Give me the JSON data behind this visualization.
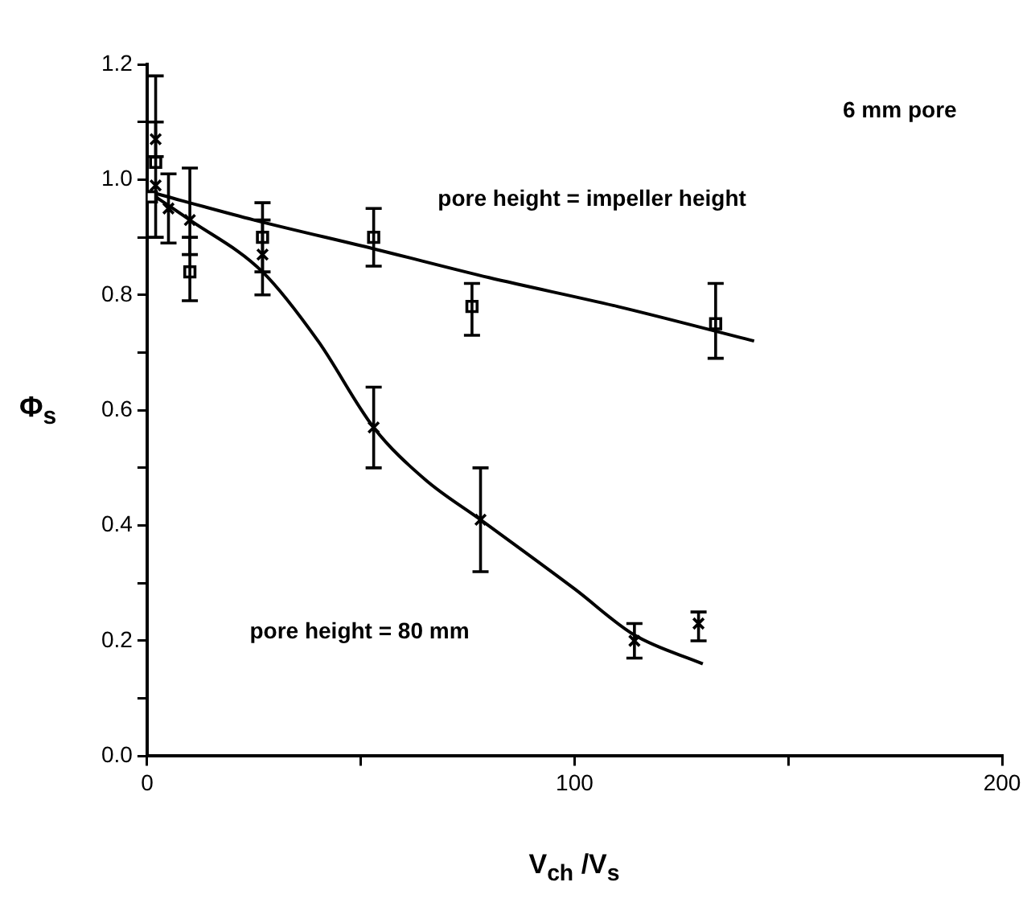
{
  "chart_data": {
    "type": "scatter",
    "xlabel": "V$_{ch}$ /V$_{s}$",
    "ylabel": "Φ$_{s}$",
    "annotations": [
      "6 mm pore",
      "pore height = impeller height",
      "pore height = 80 mm"
    ],
    "xlim": [
      0,
      200
    ],
    "xticks": [
      0,
      {
        "value": 50,
        "label": null
      },
      100,
      {
        "value": 150,
        "label": null
      },
      200
    ],
    "ylim": [
      0,
      1.2
    ],
    "yticks": [
      {
        "value": 0,
        "label": "0.0"
      },
      {
        "value": 0.1,
        "label": null
      },
      0.2,
      {
        "value": 0.3,
        "label": null
      },
      0.4,
      {
        "value": 0.5,
        "label": null
      },
      0.6,
      {
        "value": 0.7,
        "label": null
      },
      0.8,
      {
        "value": 0.9,
        "label": null
      },
      {
        "value": 1,
        "label": "1.0"
      },
      {
        "value": 1.1,
        "label": null
      },
      1.2
    ],
    "series": [
      {
        "marker": "square",
        "color": "#000000",
        "x": [
          1,
          2,
          10,
          27,
          53,
          76,
          133
        ],
        "values": [
          0.97,
          1.03,
          0.84,
          0.9,
          0.9,
          0.78,
          0.75
        ],
        "errors": [
          null,
          [
            0.9,
            1.18
          ],
          [
            0.79,
            0.9
          ],
          [
            0.84,
            0.96
          ],
          [
            0.85,
            0.95
          ],
          [
            0.73,
            0.82
          ],
          [
            0.69,
            0.82
          ]
        ]
      },
      {
        "marker": "cross",
        "color": "#000000",
        "x": [
          2,
          2,
          5,
          10,
          27,
          53,
          78,
          114,
          129
        ],
        "values": [
          1.07,
          0.99,
          0.95,
          0.93,
          0.87,
          0.57,
          0.41,
          0.2,
          0.23
        ],
        "errors": [
          [
            1.04,
            1.1
          ],
          null,
          [
            0.89,
            1.01
          ],
          [
            0.87,
            1.02
          ],
          [
            0.8,
            0.93
          ],
          [
            0.5,
            0.64
          ],
          [
            0.32,
            0.5
          ],
          [
            0.17,
            0.23
          ],
          [
            0.2,
            0.25
          ]
        ]
      },
      {
        "type": "line",
        "marker": "none",
        "line_style": "solid",
        "color": "#000000",
        "x": [
          0,
          25,
          53,
          80,
          110,
          142
        ],
        "values": [
          0.98,
          0.93,
          0.88,
          0.83,
          0.78,
          0.72
        ]
      },
      {
        "type": "line",
        "marker": "none",
        "line_style": "solid",
        "color": "#000000",
        "x": [
          0,
          10,
          27,
          40,
          53,
          65,
          78,
          100,
          114,
          130
        ],
        "values": [
          0.98,
          0.93,
          0.84,
          0.72,
          0.57,
          0.48,
          0.41,
          0.29,
          0.21,
          0.16
        ]
      }
    ]
  }
}
